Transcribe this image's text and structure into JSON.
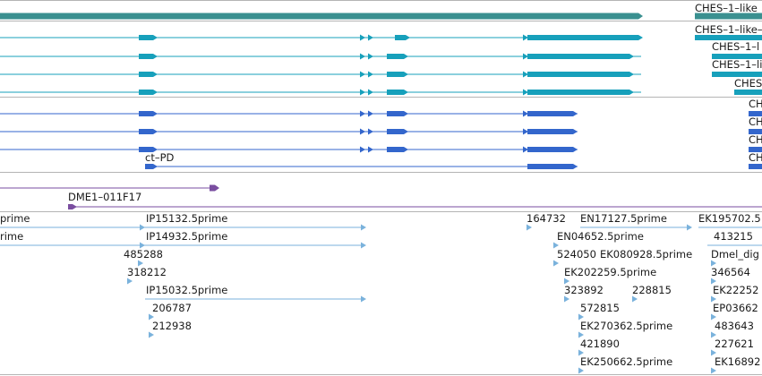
{
  "colors": {
    "top_gene": "#3a9090",
    "rna_teal": "#17a0bb",
    "rna_blue": "#3366cc",
    "clone": "#7a4ea0",
    "est": "#7ab2dc",
    "divider": "#b4b4b4",
    "intron": "#9a9a9a"
  },
  "sections": [
    {
      "name": "gene-track"
    },
    {
      "name": "transcripts-teal"
    },
    {
      "name": "transcripts-blue"
    },
    {
      "name": "clone-track"
    },
    {
      "name": "est-track"
    }
  ],
  "gene_labels": {
    "ches_0": "CHES–1–like",
    "ches_1": "CHES–1–like–",
    "ches_2": "CHES–1–l",
    "ches_3": "CHES–1–like",
    "ches_4": "CHES",
    "ches_5": "CH",
    "ches_6": "CH",
    "ches_7": "CH",
    "ches_8": "CH",
    "ct_pd": "ct–PD"
  },
  "clone_labels": {
    "dme1": "DME1–011F17"
  },
  "est_labels": {
    "e0": "prime",
    "e1": "rime",
    "ip15132": "IP15132.5prime",
    "ip14932": "IP14932.5prime",
    "n485288": "485288",
    "n318212": "318212",
    "ip15032": "IP15032.5prime",
    "n206787": "206787",
    "n212938": "212938",
    "n164732": "164732",
    "en17127": "EN17127.5prime",
    "en04652": "EN04652.5prime",
    "n524050": "524050",
    "ek080928": "EK080928.5prime",
    "ek202259": "EK202259.5prime",
    "n323892": "323892",
    "n228815": "228815",
    "n572815": "572815",
    "ek270362": "EK270362.5prime",
    "n421890": "421890",
    "ek250662": "EK250662.5prime",
    "ek195702": "EK195702.5",
    "n413215": "413215",
    "dmel_dig": "Dmel_dig",
    "n346564": "346564",
    "ek22252": "EK22252",
    "ep03662": "EP03662",
    "n483643": "483643",
    "n227621": "227621",
    "ek16892": "EK16892"
  }
}
